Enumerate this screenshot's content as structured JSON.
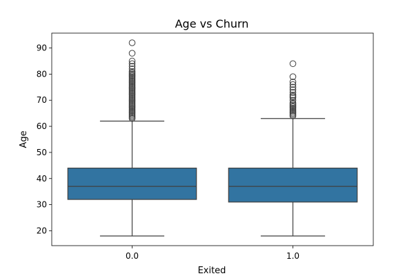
{
  "chart_data": {
    "type": "box",
    "title": "Age vs Churn",
    "xlabel": "Exited",
    "ylabel": "Age",
    "ylim": [
      14.3,
      95.7
    ],
    "yticks": [
      20,
      30,
      40,
      50,
      60,
      70,
      80,
      90
    ],
    "grid": false,
    "box_color": "#3274a1",
    "line_color": "#3f3f3f",
    "categories": [
      "0.0",
      "1.0"
    ],
    "boxes": [
      {
        "category": "0.0",
        "whisker_low": 18,
        "q1": 32,
        "median": 37,
        "q3": 44,
        "whisker_high": 62,
        "outliers": [
          63,
          63.5,
          64,
          64.5,
          65,
          65.5,
          66,
          66.5,
          67,
          67.5,
          68,
          68.5,
          69,
          69.5,
          70,
          70.5,
          71,
          71.5,
          72,
          72.5,
          73,
          73.5,
          74,
          74.5,
          75,
          75.5,
          76,
          76.5,
          77,
          77.5,
          78,
          78.5,
          79,
          79.5,
          80,
          80.5,
          81,
          82,
          83,
          84,
          85,
          88,
          92
        ]
      },
      {
        "category": "1.0",
        "whisker_low": 18,
        "q1": 31,
        "median": 37,
        "q3": 44,
        "whisker_high": 63,
        "outliers": [
          64,
          64.5,
          65,
          65.5,
          66,
          66.5,
          67,
          67.5,
          68,
          68.5,
          69,
          70,
          71,
          71.5,
          72,
          73,
          74,
          75,
          76,
          77,
          79,
          84
        ]
      }
    ]
  }
}
